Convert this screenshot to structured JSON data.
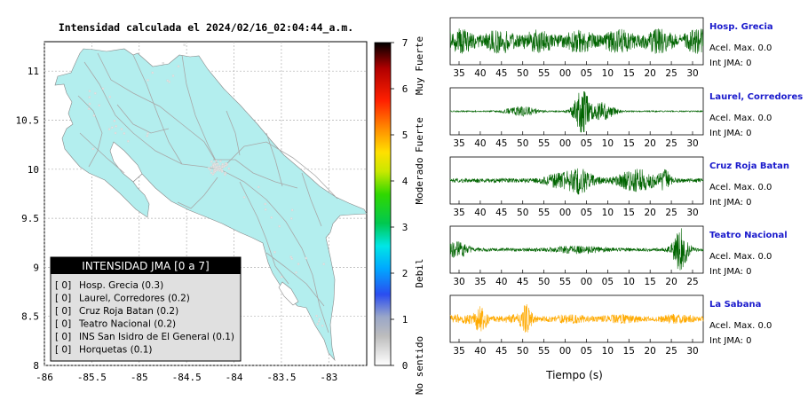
{
  "chart_data": [
    {
      "type": "map",
      "title": "Intensidad calculada el 2024/02/16_02:04:44_a.m.",
      "xlim": [
        -86,
        -82.6
      ],
      "ylim": [
        8,
        11.3
      ],
      "x_ticks": [
        -86,
        -85.5,
        -85,
        -84.5,
        -84,
        -83.5,
        -83
      ],
      "y_ticks": [
        8,
        8.5,
        9,
        9.5,
        10,
        10.5,
        11
      ],
      "grid": true,
      "land_color": "#b3eeee",
      "legend": {
        "title": "INTENSIDAD JMA [0 a 7]",
        "placement": "bottom-left",
        "entries": [
          {
            "level": "[ 0]",
            "name": "Hosp. Grecia",
            "value": "(0.3)"
          },
          {
            "level": "[ 0]",
            "name": "Laurel, Corredores",
            "value": "(0.2)"
          },
          {
            "level": "[ 0]",
            "name": "Cruz Roja Batan",
            "value": "(0.2)"
          },
          {
            "level": "[ 0]",
            "name": "Teatro Nacional",
            "value": "(0.2)"
          },
          {
            "level": "[ 0]",
            "name": "INS San Isidro de El General",
            "value": "(0.1)"
          },
          {
            "level": "[ 0]",
            "name": "Horquetas",
            "value": "(0.1)"
          }
        ]
      }
    },
    {
      "type": "heatmap",
      "colorbar_ticks": [
        0,
        1,
        2,
        3,
        4,
        5,
        6,
        7
      ],
      "range": [
        0,
        7
      ],
      "category_labels": [
        "No sentido",
        "Debil",
        "Moderado",
        "Fuerte",
        "Muy Fuerte"
      ],
      "category_positions": [
        0,
        2,
        4,
        5,
        6.5
      ]
    },
    {
      "type": "line",
      "xlabel": "Tiempo (s)",
      "ylim": [
        -1,
        1
      ],
      "series": [
        {
          "name": "Hosp. Grecia",
          "color": "#006400",
          "ticks": [
            "35",
            "40",
            "45",
            "50",
            "55",
            "00",
            "05",
            "10",
            "15",
            "20",
            "25",
            "30"
          ],
          "accel": "Acel. Max. 0.0",
          "int": "Int JMA: 0"
        },
        {
          "name": "Laurel, Corredores",
          "color": "#006400",
          "ticks": [
            "35",
            "40",
            "45",
            "50",
            "55",
            "00",
            "05",
            "10",
            "15",
            "20",
            "25",
            "30"
          ],
          "accel": "Acel. Max. 0.0",
          "int": "Int JMA: 0"
        },
        {
          "name": "Cruz Roja Batan",
          "color": "#006400",
          "ticks": [
            "35",
            "40",
            "45",
            "50",
            "55",
            "00",
            "05",
            "10",
            "15",
            "20",
            "25",
            "30"
          ],
          "accel": "Acel. Max. 0.0",
          "int": "Int JMA: 0"
        },
        {
          "name": "Teatro Nacional",
          "color": "#006400",
          "ticks": [
            "30",
            "35",
            "40",
            "45",
            "50",
            "55",
            "00",
            "05",
            "10",
            "15",
            "20",
            "25"
          ],
          "accel": "Acel. Max. 0.0",
          "int": "Int JMA: 0"
        },
        {
          "name": "La Sabana",
          "color": "#ffaa00",
          "ticks": [
            "35",
            "40",
            "45",
            "50",
            "55",
            "00",
            "05",
            "10",
            "15",
            "20",
            "25",
            "30"
          ],
          "accel": "Acel. Max. 0.0",
          "int": "Int JMA: 0"
        }
      ]
    }
  ]
}
